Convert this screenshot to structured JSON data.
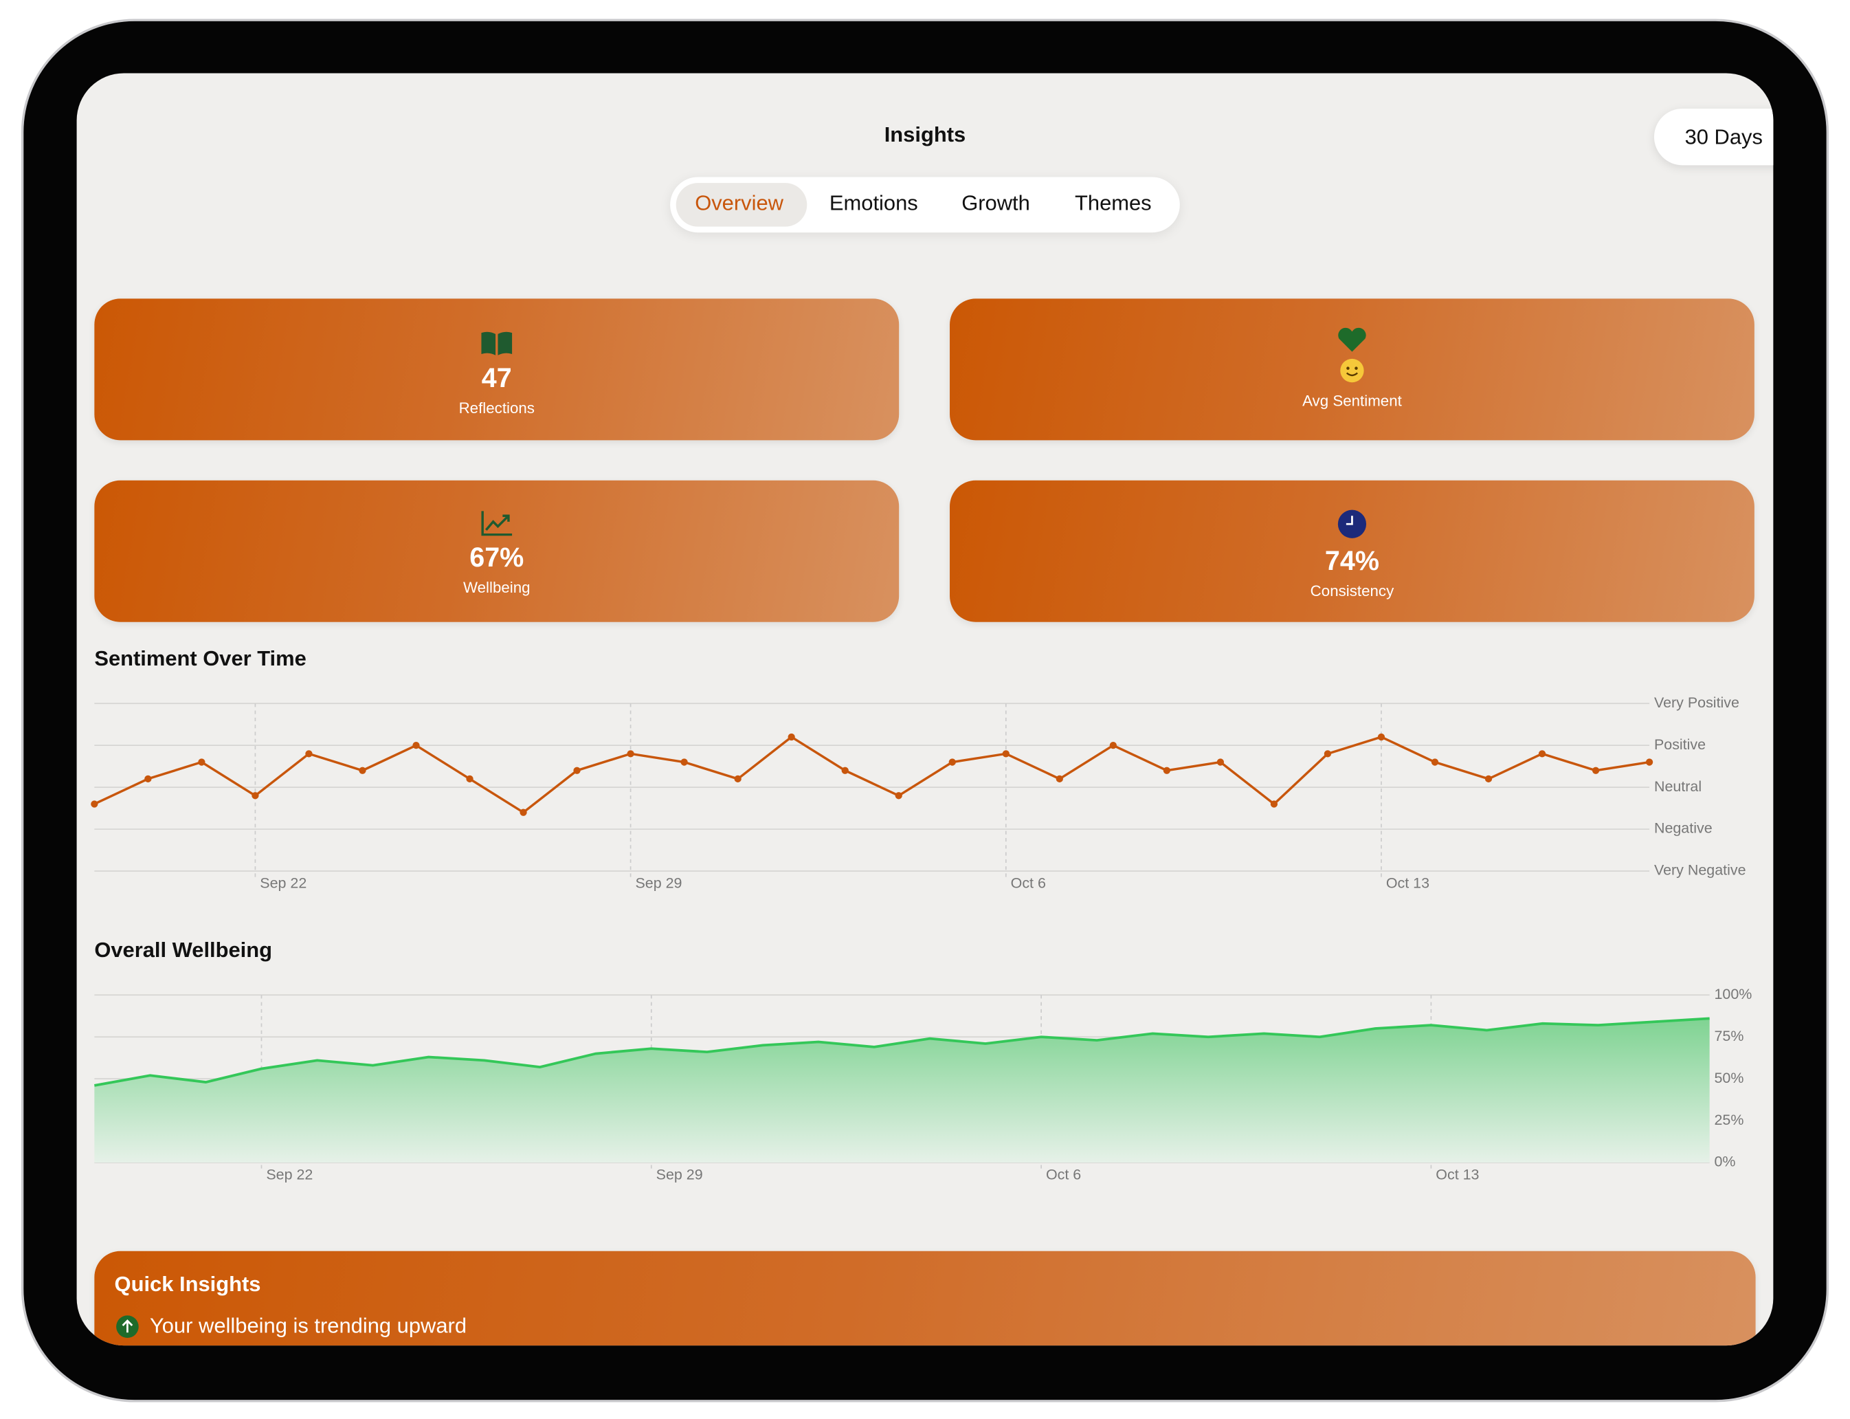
{
  "header": {
    "title": "Insights",
    "range": "30 Days"
  },
  "tabs": [
    "Overview",
    "Emotions",
    "Growth",
    "Themes"
  ],
  "cards": [
    {
      "value": "47",
      "label": "Reflections"
    },
    {
      "label": "Avg Sentiment"
    },
    {
      "value": "67%",
      "label": "Wellbeing"
    },
    {
      "value": "74%",
      "label": "Consistency"
    }
  ],
  "chart_data": [
    {
      "type": "line",
      "title": "Sentiment Over Time",
      "color": "#c8560c",
      "grid": true,
      "categories": [
        null,
        null,
        null,
        "Sep 22",
        null,
        null,
        null,
        null,
        null,
        null,
        "Sep 29",
        null,
        null,
        null,
        null,
        null,
        null,
        "Oct 6",
        null,
        null,
        null,
        null,
        null,
        null,
        "Oct 13",
        null,
        null,
        null,
        null,
        null
      ],
      "values": [
        -0.4,
        0.2,
        0.6,
        -0.2,
        0.8,
        0.4,
        1.0,
        0.2,
        -0.6,
        0.4,
        0.8,
        0.6,
        0.2,
        1.2,
        0.4,
        -0.2,
        0.6,
        0.8,
        0.2,
        1.0,
        0.4,
        0.6,
        -0.4,
        0.8,
        1.2,
        0.6,
        0.2,
        0.8,
        0.4,
        0.6
      ],
      "ylim": [
        -2,
        2
      ],
      "yticks": [
        {
          "value": 2,
          "label": "Very Positive"
        },
        {
          "value": 1,
          "label": "Positive"
        },
        {
          "value": 0,
          "label": "Neutral"
        },
        {
          "value": -1,
          "label": "Negative"
        },
        {
          "value": -2,
          "label": "Very Negative"
        }
      ]
    },
    {
      "type": "area",
      "title": "Overall Wellbeing",
      "color": "#34c759",
      "grid": true,
      "categories": [
        null,
        null,
        null,
        "Sep 22",
        null,
        null,
        null,
        null,
        null,
        null,
        "Sep 29",
        null,
        null,
        null,
        null,
        null,
        null,
        "Oct 6",
        null,
        null,
        null,
        null,
        null,
        null,
        "Oct 13",
        null,
        null,
        null,
        null,
        null
      ],
      "values": [
        46,
        52,
        48,
        56,
        61,
        58,
        63,
        61,
        57,
        65,
        68,
        66,
        70,
        72,
        69,
        74,
        71,
        75,
        73,
        77,
        75,
        77,
        75,
        80,
        82,
        79,
        83,
        82,
        84,
        86
      ],
      "ylim": [
        0,
        100
      ],
      "yticks": [
        {
          "value": 100,
          "label": "100%"
        },
        {
          "value": 75,
          "label": "75%"
        },
        {
          "value": 50,
          "label": "50%"
        },
        {
          "value": 25,
          "label": "25%"
        },
        {
          "value": 0,
          "label": "0%"
        }
      ]
    }
  ],
  "quick_insights": {
    "title": "Quick Insights",
    "items": [
      "Your wellbeing is trending upward"
    ]
  }
}
